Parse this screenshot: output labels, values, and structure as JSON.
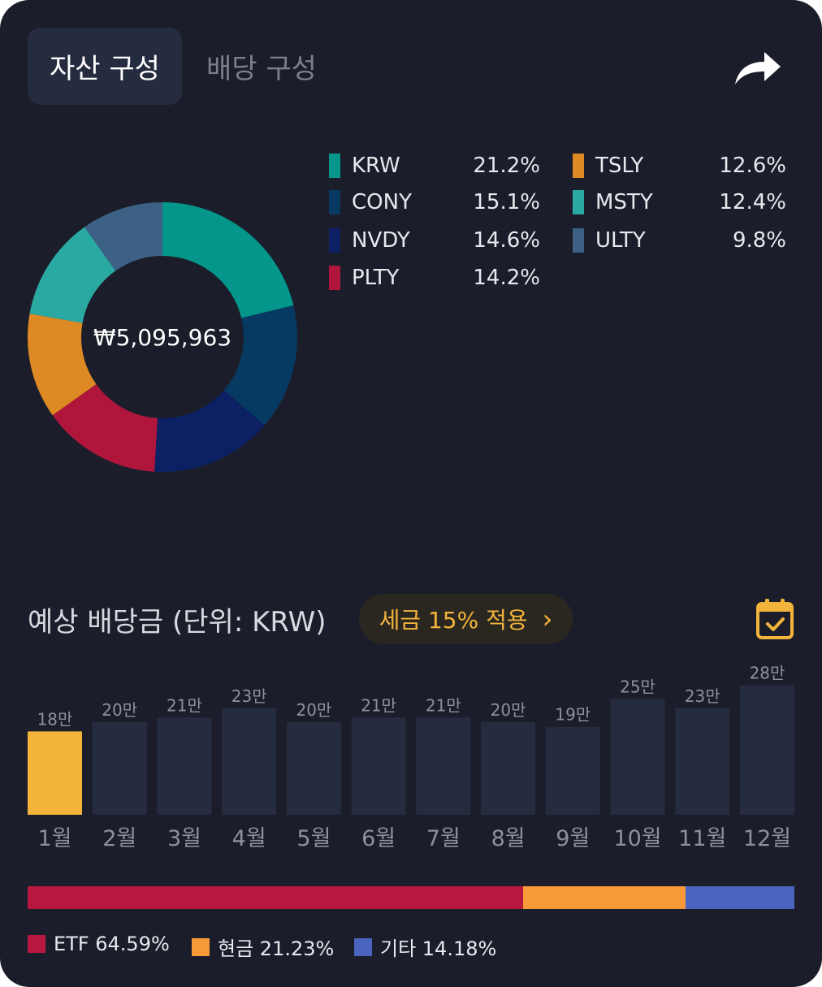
{
  "tabs": {
    "asset": "자산 구성",
    "dividend": "배당 구성"
  },
  "share_icon": "share-arrow-icon",
  "donut": {
    "center_label": "₩5,095,963",
    "slices": [
      {
        "name": "KRW",
        "pct": "21.2%",
        "value": 21.2,
        "color": "#04968a"
      },
      {
        "name": "CONY",
        "pct": "15.1%",
        "value": 15.1,
        "color": "#073a62"
      },
      {
        "name": "NVDY",
        "pct": "14.6%",
        "value": 14.6,
        "color": "#0b2163"
      },
      {
        "name": "PLTY",
        "pct": "14.2%",
        "value": 14.2,
        "color": "#b0163c"
      },
      {
        "name": "TSLY",
        "pct": "12.6%",
        "value": 12.6,
        "color": "#dd8a24"
      },
      {
        "name": "MSTY",
        "pct": "12.4%",
        "value": 12.4,
        "color": "#2aa9a3"
      },
      {
        "name": "ULTY",
        "pct": "9.8%",
        "value": 9.8,
        "color": "#3c6185"
      }
    ]
  },
  "dividend": {
    "title": "예상 배당금 (단위: KRW)",
    "tax_label": "세금 15% 적용",
    "tax_chevron": "›",
    "calendar_icon": "calendar-check-icon",
    "highlight_color": "#f3b43c",
    "bar_color": "#262c3f"
  },
  "chart_data": {
    "type": "bar",
    "categories": [
      "1월",
      "2월",
      "3월",
      "4월",
      "5월",
      "6월",
      "7월",
      "8월",
      "9월",
      "10월",
      "11월",
      "12월"
    ],
    "values": [
      18,
      20,
      21,
      23,
      20,
      21,
      21,
      20,
      19,
      25,
      23,
      28
    ],
    "labels": [
      "18만",
      "20만",
      "21만",
      "23만",
      "20만",
      "21만",
      "21만",
      "20만",
      "19만",
      "25만",
      "23만",
      "28만"
    ],
    "highlight_index": 0
  },
  "composition": {
    "segments": [
      {
        "label": "ETF 64.59%",
        "value": 64.59,
        "color": "#b8173f"
      },
      {
        "label": "현금 21.23%",
        "value": 21.23,
        "color": "#f89a3a"
      },
      {
        "label": "기타 14.18%",
        "value": 14.18,
        "color": "#4a64c0"
      }
    ]
  }
}
